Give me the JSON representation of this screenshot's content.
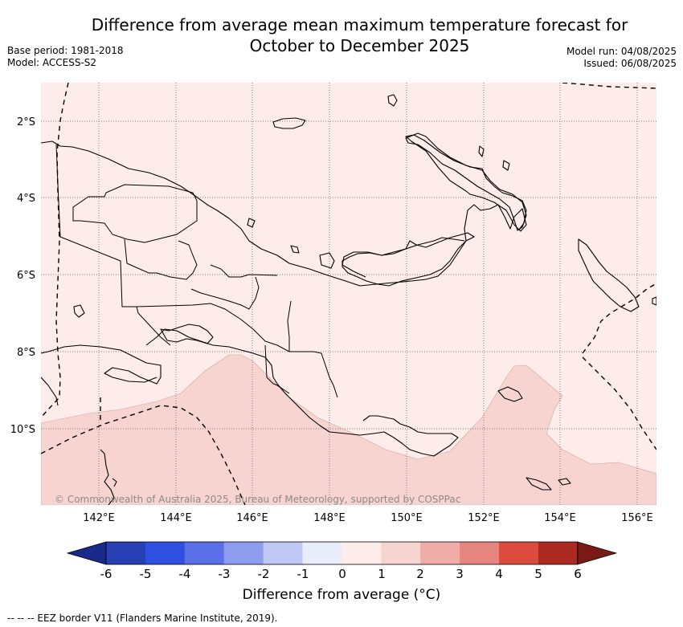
{
  "title_line1": "Difference from average mean maximum temperature forecast for",
  "title_line2": "October to December 2025",
  "base_period": "Base period: 1981-2018",
  "model": "Model: ACCESS-S2",
  "model_run": "Model run: 04/08/2025",
  "issued": "Issued: 06/08/2025",
  "copyright": "© Commonwealth of Australia 2025, Bureau of Meteorology, supported by COSPPac",
  "lon_ticks": [
    "142°E",
    "144°E",
    "146°E",
    "148°E",
    "150°E",
    "152°E",
    "154°E",
    "156°E"
  ],
  "lat_ticks": [
    "2°S",
    "4°S",
    "6°S",
    "8°S",
    "10°S"
  ],
  "colorbar": {
    "label": "Difference from average (°C)",
    "ticks": [
      "-6",
      "-5",
      "-4",
      "-3",
      "-2",
      "-1",
      "0",
      "1",
      "2",
      "3",
      "4",
      "5",
      "6"
    ],
    "colors": [
      "#1a2a8c",
      "#2640b4",
      "#2f4fe0",
      "#5a70e8",
      "#8c9cee",
      "#c0c8f6",
      "#e8ecfb",
      "#fdecea",
      "#f8d4d0",
      "#f0aca6",
      "#e6857d",
      "#db4b3e",
      "#ad2a22",
      "#7a1a16"
    ]
  },
  "fill_colors": {
    "band_0_1": "#fdecea",
    "band_1_2": "#f8d4d0",
    "land_outline": "#000000"
  },
  "footer": "--  --  -- EEZ border V11 (Flanders Marine Institute, 2019)."
}
